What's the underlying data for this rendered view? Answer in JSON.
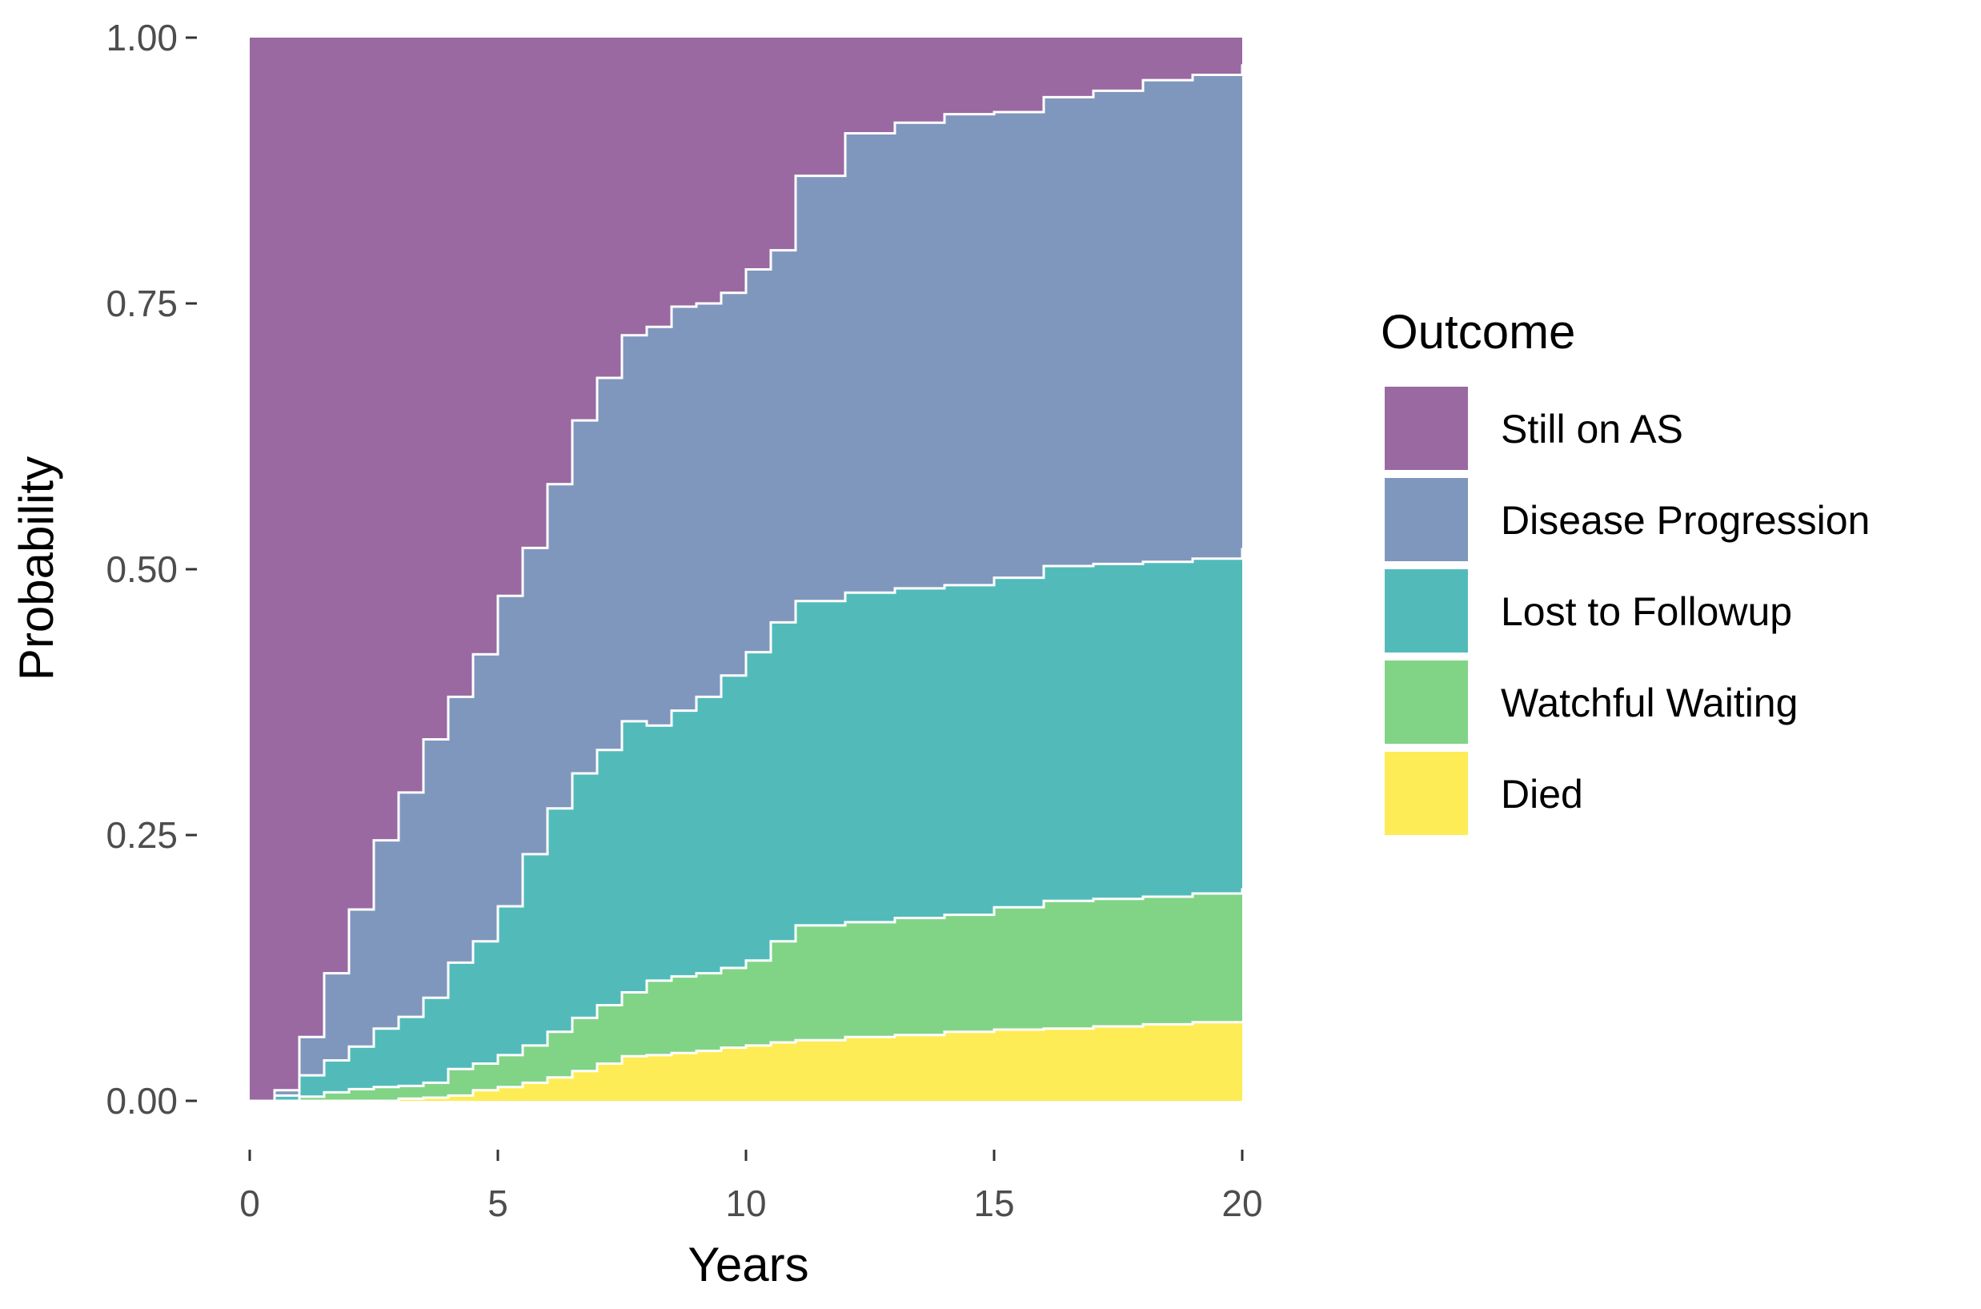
{
  "chart_data": {
    "type": "area",
    "title": "",
    "xlabel": "Years",
    "ylabel": "Probability",
    "xlim": [
      0,
      20
    ],
    "ylim": [
      0,
      1
    ],
    "x_ticks": [
      "0",
      "5",
      "10",
      "15",
      "20"
    ],
    "y_ticks": [
      "0.00",
      "0.25",
      "0.50",
      "0.75",
      "1.00"
    ],
    "grid": false,
    "stacked": true,
    "stepped": true,
    "legend": {
      "title": "Outcome",
      "position": "right",
      "entries": [
        "Still on AS",
        "Disease Progression",
        "Lost to Followup",
        "Watchful Waiting",
        "Died"
      ]
    },
    "x": [
      0,
      0.5,
      1,
      1.5,
      2,
      2.5,
      3,
      3.5,
      4,
      4.5,
      5,
      5.5,
      6,
      6.5,
      7,
      7.5,
      8,
      8.5,
      9,
      9.5,
      10,
      10.5,
      11,
      12,
      13,
      14,
      15,
      16,
      17,
      18,
      19,
      20
    ],
    "series": [
      {
        "name": "Died",
        "color": "#FDE725",
        "values": [
          0,
          0,
          0,
          0,
          0,
          0,
          0.002,
          0.003,
          0.005,
          0.01,
          0.013,
          0.017,
          0.022,
          0.028,
          0.035,
          0.042,
          0.043,
          0.045,
          0.047,
          0.05,
          0.052,
          0.055,
          0.057,
          0.06,
          0.062,
          0.065,
          0.067,
          0.068,
          0.07,
          0.072,
          0.074,
          0.075
        ]
      },
      {
        "name": "Watchful Waiting",
        "color": "#5DC863",
        "values": [
          0,
          0,
          0.004,
          0.008,
          0.011,
          0.013,
          0.012,
          0.014,
          0.025,
          0.025,
          0.03,
          0.035,
          0.043,
          0.05,
          0.055,
          0.06,
          0.07,
          0.072,
          0.073,
          0.075,
          0.08,
          0.095,
          0.108,
          0.108,
          0.11,
          0.11,
          0.115,
          0.12,
          0.12,
          0.12,
          0.121,
          0.125
        ]
      },
      {
        "name": "Lost to Followup",
        "color": "#21A8A6",
        "values": [
          0,
          0.005,
          0.02,
          0.03,
          0.04,
          0.055,
          0.065,
          0.08,
          0.1,
          0.115,
          0.14,
          0.18,
          0.21,
          0.23,
          0.24,
          0.255,
          0.24,
          0.25,
          0.26,
          0.275,
          0.29,
          0.3,
          0.305,
          0.31,
          0.31,
          0.31,
          0.31,
          0.315,
          0.315,
          0.315,
          0.315,
          0.32
        ]
      },
      {
        "name": "Disease Progression",
        "color": "#5C7AAB",
        "values": [
          0,
          0.005,
          0.036,
          0.082,
          0.129,
          0.177,
          0.211,
          0.243,
          0.25,
          0.27,
          0.292,
          0.288,
          0.305,
          0.332,
          0.35,
          0.363,
          0.375,
          0.38,
          0.37,
          0.36,
          0.36,
          0.35,
          0.4,
          0.432,
          0.438,
          0.443,
          0.438,
          0.441,
          0.445,
          0.453,
          0.455,
          0.455
        ]
      },
      {
        "name": "Still on AS",
        "color": "#7E3F86",
        "values": [
          1,
          0.99,
          0.94,
          0.88,
          0.82,
          0.755,
          0.71,
          0.66,
          0.62,
          0.58,
          0.525,
          0.48,
          0.42,
          0.36,
          0.32,
          0.28,
          0.272,
          0.253,
          0.25,
          0.24,
          0.218,
          0.2,
          0.13,
          0.09,
          0.08,
          0.072,
          0.07,
          0.056,
          0.05,
          0.04,
          0.035,
          0.025
        ]
      }
    ]
  }
}
